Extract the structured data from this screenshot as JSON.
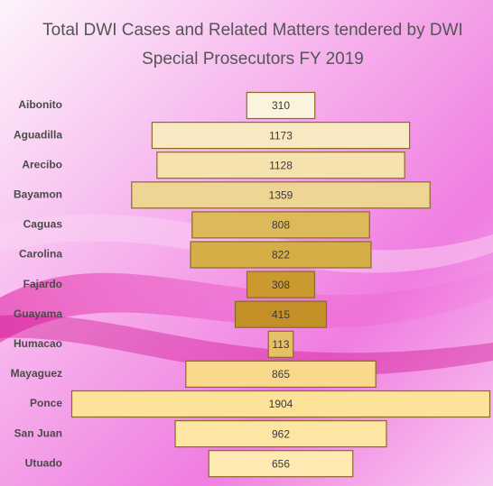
{
  "chart_data": {
    "type": "bar",
    "orientation": "horizontal-centered",
    "title": "Total DWI Cases and Related Matters tendered by DWI Special Prosecutors FY 2019",
    "categories": [
      "Aibonito",
      "Aguadilla",
      "Arecibo",
      "Bayamon",
      "Caguas",
      "Carolina",
      "Fajardo",
      "Guayama",
      "Humacao",
      "Mayaguez",
      "Ponce",
      "San Juan",
      "Utuado"
    ],
    "values": [
      310,
      1173,
      1128,
      1359,
      808,
      822,
      308,
      415,
      113,
      865,
      1904,
      962,
      656
    ],
    "colors": [
      "#fbf3dc",
      "#f8e9c2",
      "#f5e2ae",
      "#efd594",
      "#dcb95a",
      "#d6ae46",
      "#cb9a2e",
      "#c38f27",
      "#e6c066",
      "#fbd98c",
      "#fde29a",
      "#fde5a3",
      "#feeab2"
    ]
  }
}
